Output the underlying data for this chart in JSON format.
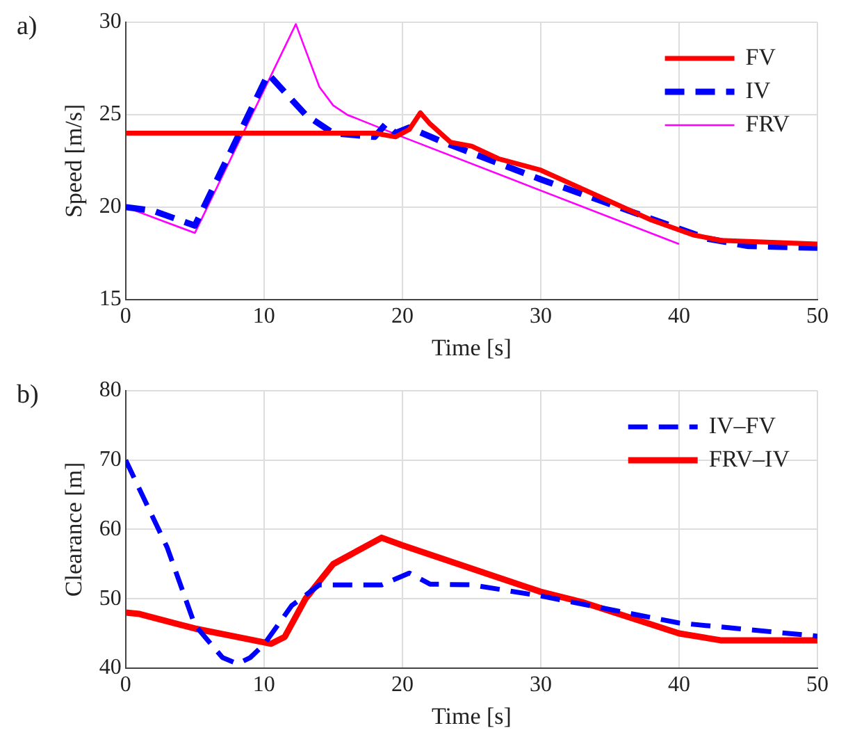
{
  "chart_data": [
    {
      "type": "line",
      "title": "a)",
      "xlabel": "Time [s]",
      "ylabel": "Speed [m/s]",
      "xlim": [
        0,
        50
      ],
      "xticks": [
        0,
        10,
        20,
        30,
        40,
        50
      ],
      "ylim": [
        15,
        30
      ],
      "yticks": [
        15,
        20,
        25,
        30
      ],
      "grid": true,
      "legend": "top right",
      "marker": "none",
      "series": [
        {
          "name": "FV",
          "color": "#ff0000",
          "line_style": "solid",
          "x": [
            0,
            10,
            16,
            18,
            19.5,
            20.5,
            21.3,
            22,
            23.5,
            25,
            27,
            30,
            38,
            41,
            43,
            50
          ],
          "values": [
            24,
            24,
            24,
            24,
            23.8,
            24.2,
            25.1,
            24.5,
            23.5,
            23.3,
            22.6,
            22,
            19.3,
            18.5,
            18.2,
            18
          ]
        },
        {
          "name": "IV",
          "color": "#0000ff",
          "line_style": "dashed",
          "x": [
            0,
            2,
            5,
            10.3,
            13,
            15,
            18,
            18.8,
            19.5,
            20.5,
            23,
            30,
            42,
            45,
            50
          ],
          "values": [
            20,
            19.8,
            19,
            27.2,
            25,
            24,
            23.8,
            24.5,
            24,
            24.3,
            23.5,
            21.5,
            18.3,
            17.9,
            17.8
          ]
        },
        {
          "name": "FRV",
          "color": "#ff00ff",
          "line_style": "solid",
          "x": [
            0,
            5,
            12.3,
            13,
            14,
            15,
            16,
            17,
            20,
            40
          ],
          "values": [
            20,
            18.6,
            29.9,
            28.5,
            26.5,
            25.5,
            25,
            24.7,
            23.8,
            18
          ]
        }
      ]
    },
    {
      "type": "line",
      "title": "b)",
      "xlabel": "Time [s]",
      "ylabel": "Clearance [m]",
      "xlim": [
        0,
        50
      ],
      "xticks": [
        0,
        10,
        20,
        30,
        40,
        50
      ],
      "ylim": [
        40,
        80
      ],
      "yticks": [
        40,
        50,
        60,
        70,
        80
      ],
      "grid": true,
      "legend": "top right",
      "marker": "none",
      "series": [
        {
          "name": "IV–FV",
          "color": "#0000ff",
          "line_style": "dashed",
          "x": [
            0,
            3,
            5,
            7,
            8.1,
            9,
            10,
            12,
            14,
            18.5,
            20.5,
            22,
            25,
            30,
            40,
            50
          ],
          "values": [
            70,
            57.4,
            46.2,
            41.5,
            40.6,
            41.5,
            43.4,
            49,
            52,
            52,
            53.7,
            52.1,
            52,
            50.4,
            46.5,
            44.6
          ]
        },
        {
          "name": "FRV–IV",
          "color": "#ff0000",
          "line_style": "solid",
          "x": [
            0,
            1,
            5,
            8,
            10.5,
            11.5,
            13,
            15,
            18.5,
            20,
            30,
            33,
            40,
            43,
            50
          ],
          "values": [
            48,
            47.8,
            45.7,
            44.5,
            43.5,
            44.5,
            50,
            55,
            58.8,
            57.7,
            51,
            49.5,
            45,
            44,
            44
          ]
        }
      ]
    }
  ]
}
